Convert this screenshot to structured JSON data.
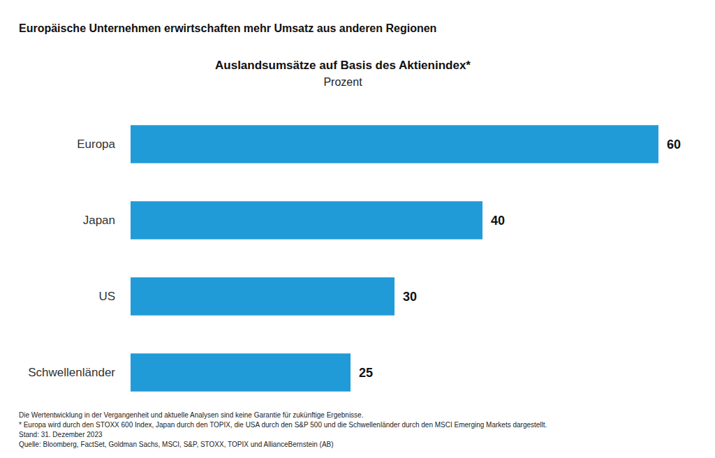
{
  "chart_data": {
    "type": "bar",
    "orientation": "horizontal",
    "headline": "Europäische Unternehmen erwirtschaften mehr Umsatz aus anderen Regionen",
    "title": "Auslandsumsätze auf Basis des Aktienindex*",
    "subtitle": "Prozent",
    "categories": [
      "Europa",
      "Japan",
      "US",
      "Schwellenländer"
    ],
    "values": [
      60,
      40,
      30,
      25
    ],
    "color": "#209bd7",
    "xlim": [
      0,
      60
    ],
    "grid": false,
    "data_labels": true,
    "tick_labels": "y",
    "notes": [
      "Die Wertentwicklung in der Vergangenheit und aktuelle Analysen sind keine Garantie für zukünftige Ergebnisse.",
      "* Europa wird durch den STOXX 600 Index, Japan durch den TOPIX, die USA durch den S&P 500 und die Schwellenländer durch den MSCI Emerging Markets dargestellt.",
      "Stand: 31. Dezember 2023",
      "Quelle: Bloomberg, FactSet, Goldman Sachs, MSCI, S&P, STOXX, TOPIX und AllianceBernstein (AB)"
    ]
  }
}
